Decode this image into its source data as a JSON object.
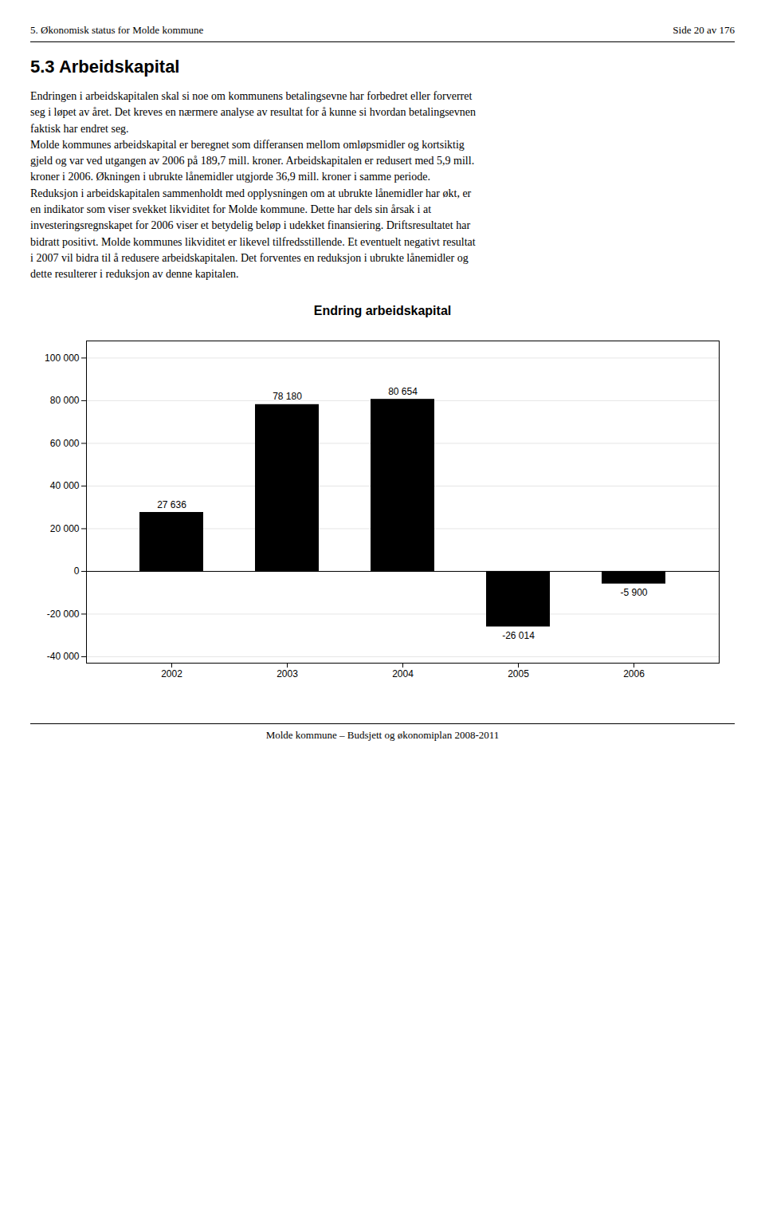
{
  "header_left": "5. Økonomisk status for Molde kommune",
  "header_right": "Side 20 av 176",
  "section_title": "5.3   Arbeidskapital",
  "body_text": "Endringen i arbeidskapitalen skal si noe om kommunens betalingsevne har forbedret eller forverret\nseg i løpet av året. Det kreves en nærmere analyse av resultat for å kunne si hvordan betalingsevnen\nfaktisk har endret seg.\nMolde kommunes arbeidskapital er beregnet som differansen mellom omløpsmidler og kortsiktig\ngjeld og var ved utgangen av 2006 på 189,7 mill. kroner. Arbeidskapitalen er redusert med 5,9 mill.\nkroner i 2006. Økningen i ubrukte lånemidler utgjorde 36,9 mill. kroner i samme periode.\nReduksjon i arbeidskapitalen sammenholdt med opplysningen om at ubrukte lånemidler har økt, er\nen indikator som viser svekket likviditet for Molde kommune. Dette har dels sin årsak i at\ninvesteringsregnskapet for 2006 viser et betydelig beløp i udekket finansiering. Driftsresultatet har\nbidratt positivt. Molde kommunes likviditet er likevel tilfredsstillende. Et eventuelt negativt resultat\ni 2007 vil bidra til å redusere arbeidskapitalen. Det forventes en reduksjon i ubrukte lånemidler og\ndette resulterer i reduksjon av denne kapitalen.",
  "footer_text": "Molde kommune – Budsjett og økonomiplan 2008-2011",
  "chart_data": {
    "type": "bar",
    "title": "Endring arbeidskapital",
    "categories": [
      "2002",
      "2003",
      "2004",
      "2005",
      "2006"
    ],
    "values": [
      27636,
      78180,
      80654,
      -26014,
      -5900
    ],
    "value_labels": [
      "27 636",
      "78 180",
      "80 654",
      "-26 014",
      "-5 900"
    ],
    "data_labels": true,
    "ylim": [
      -43000,
      108000
    ],
    "yticks": [
      {
        "value": -40000,
        "label": "-40 000"
      },
      {
        "value": -20000,
        "label": "-20 000"
      },
      0,
      {
        "value": 20000,
        "label": "20 000"
      },
      {
        "value": 40000,
        "label": "40 000"
      },
      {
        "value": 60000,
        "label": "60 000"
      },
      {
        "value": 80000,
        "label": "80 000"
      },
      {
        "value": 100000,
        "label": "100 000"
      }
    ],
    "grid": true
  }
}
